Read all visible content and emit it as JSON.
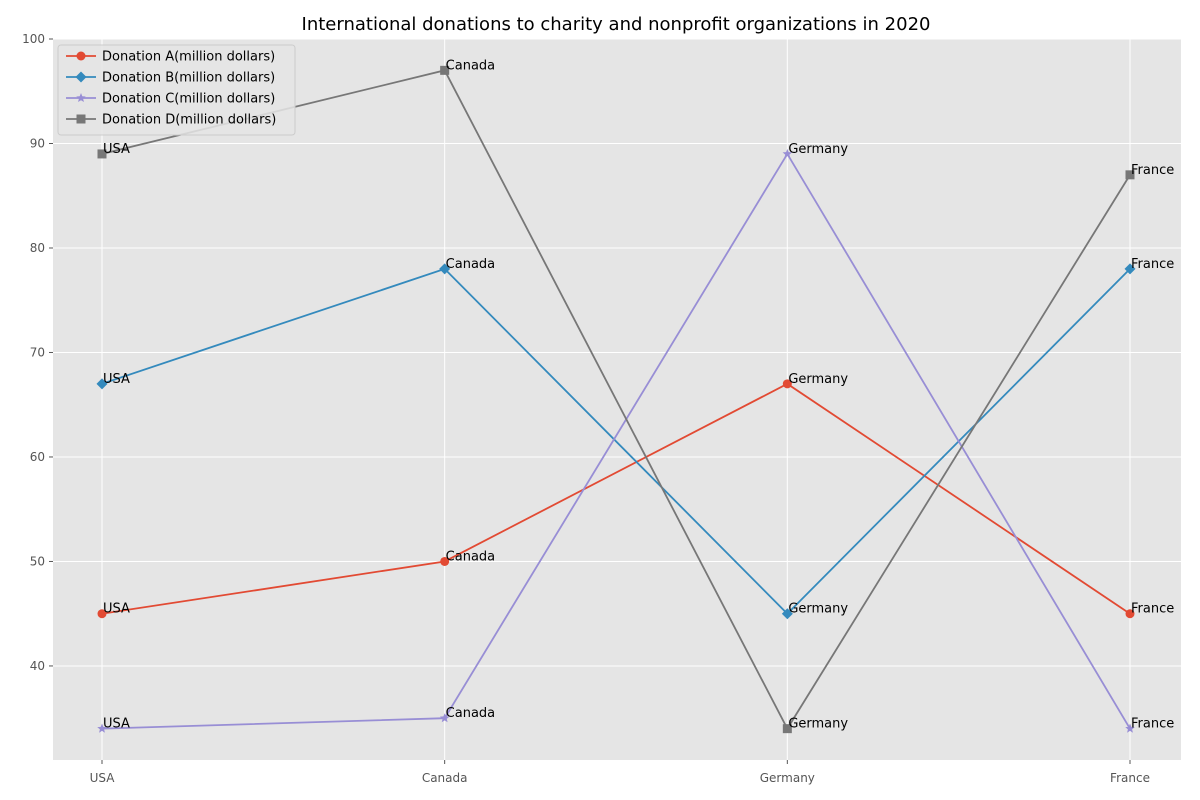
{
  "chart_data": {
    "type": "line",
    "title": "International donations to charity and nonprofit organizations in 2020",
    "xlabel": "",
    "ylabel": "",
    "categories": [
      "USA",
      "Canada",
      "Germany",
      "France"
    ],
    "ylim": [
      31,
      100
    ],
    "yticks": [
      40,
      50,
      60,
      70,
      80,
      90,
      100
    ],
    "grid": true,
    "legend_position": "top-left",
    "point_labels": "category name beside each point",
    "series": [
      {
        "name": "Donation A(million dollars)",
        "values": [
          45,
          50,
          67,
          45
        ],
        "color": "#e24a33",
        "marker": "circle"
      },
      {
        "name": "Donation B(million dollars)",
        "values": [
          67,
          78,
          45,
          78
        ],
        "color": "#348abd",
        "marker": "diamond"
      },
      {
        "name": "Donation C(million dollars)",
        "values": [
          34,
          35,
          89,
          34
        ],
        "color": "#988ed5",
        "marker": "star"
      },
      {
        "name": "Donation D(million dollars)",
        "values": [
          89,
          97,
          34,
          87
        ],
        "color": "#777777",
        "marker": "square"
      }
    ]
  }
}
